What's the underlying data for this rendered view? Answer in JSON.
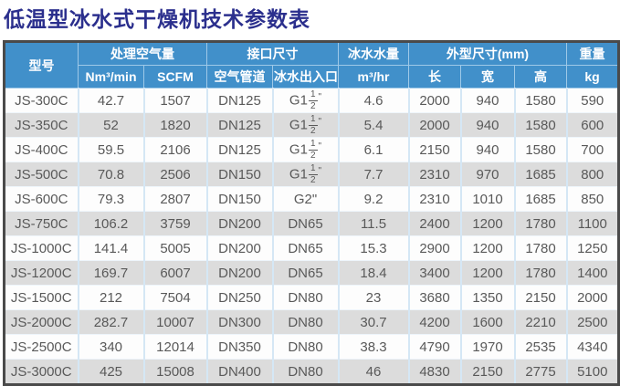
{
  "title": "低温型冰水式干燥机技术参数表",
  "colors": {
    "title_text": "#2b2f8d",
    "header_bg": "#4190ca",
    "header_text": "#ffffff",
    "row_alt_bg": "#dcdcdc",
    "row_bg": "#fdfdfd",
    "body_text": "#595959",
    "outer_border": "#4a4a4a",
    "grid_line": "#d5e7f5"
  },
  "table": {
    "header": {
      "model": "型号",
      "air_capacity": "处理空气量",
      "unit_nm3": "Nm³/min",
      "unit_scfm": "SCFM",
      "connection": "接口尺寸",
      "sub_air_pipe": "空气管道",
      "sub_water_port": "冰水出入口",
      "chilled_water": "冰水水量",
      "unit_m3hr": "m³/hr",
      "dimensions": "外型尺寸(mm)",
      "sub_length": "长",
      "sub_width": "宽",
      "sub_height": "高",
      "weight": "重量",
      "unit_kg": "kg"
    },
    "columns": [
      "model",
      "nm3_min",
      "scfm",
      "air_pipe",
      "water_port",
      "water_flow",
      "length",
      "width",
      "height",
      "weight"
    ],
    "rows": [
      {
        "model": "JS-300C",
        "nm3_min": "42.7",
        "scfm": "1507",
        "air_pipe": "DN125",
        "water_port": "G1-1/2\"",
        "water_flow": "4.6",
        "length": "2000",
        "width": "940",
        "height": "1580",
        "weight": "590"
      },
      {
        "model": "JS-350C",
        "nm3_min": "52",
        "scfm": "1820",
        "air_pipe": "DN125",
        "water_port": "G1-1/2\"",
        "water_flow": "5.4",
        "length": "2000",
        "width": "940",
        "height": "1580",
        "weight": "600"
      },
      {
        "model": "JS-400C",
        "nm3_min": "59.5",
        "scfm": "2106",
        "air_pipe": "DN125",
        "water_port": "G1-1/2\"",
        "water_flow": "6.1",
        "length": "2150",
        "width": "940",
        "height": "1580",
        "weight": "700"
      },
      {
        "model": "JS-500C",
        "nm3_min": "70.8",
        "scfm": "2506",
        "air_pipe": "DN150",
        "water_port": "G1-1/2\"",
        "water_flow": "7.7",
        "length": "2310",
        "width": "970",
        "height": "1685",
        "weight": "800"
      },
      {
        "model": "JS-600C",
        "nm3_min": "79.3",
        "scfm": "2807",
        "air_pipe": "DN150",
        "water_port": "G2\"",
        "water_flow": "9.2",
        "length": "2310",
        "width": "1010",
        "height": "1685",
        "weight": "850"
      },
      {
        "model": "JS-750C",
        "nm3_min": "106.2",
        "scfm": "3759",
        "air_pipe": "DN200",
        "water_port": "DN65",
        "water_flow": "11.5",
        "length": "2400",
        "width": "1200",
        "height": "1780",
        "weight": "1100"
      },
      {
        "model": "JS-1000C",
        "nm3_min": "141.4",
        "scfm": "5005",
        "air_pipe": "DN200",
        "water_port": "DN65",
        "water_flow": "15.3",
        "length": "2900",
        "width": "1200",
        "height": "1780",
        "weight": "1250"
      },
      {
        "model": "JS-1200C",
        "nm3_min": "169.7",
        "scfm": "6007",
        "air_pipe": "DN200",
        "water_port": "DN65",
        "water_flow": "18.4",
        "length": "3400",
        "width": "1200",
        "height": "1780",
        "weight": "1400"
      },
      {
        "model": "JS-1500C",
        "nm3_min": "212",
        "scfm": "7504",
        "air_pipe": "DN250",
        "water_port": "DN80",
        "water_flow": "23",
        "length": "3680",
        "width": "1350",
        "height": "2150",
        "weight": "2000"
      },
      {
        "model": "JS-2000C",
        "nm3_min": "282.7",
        "scfm": "10007",
        "air_pipe": "DN300",
        "water_port": "DN80",
        "water_flow": "30.7",
        "length": "4200",
        "width": "1600",
        "height": "2210",
        "weight": "2500"
      },
      {
        "model": "JS-2500C",
        "nm3_min": "340",
        "scfm": "12014",
        "air_pipe": "DN350",
        "water_port": "DN80",
        "water_flow": "38.3",
        "length": "4790",
        "width": "1970",
        "height": "2535",
        "weight": "4340"
      },
      {
        "model": "JS-3000C",
        "nm3_min": "425",
        "scfm": "15008",
        "air_pipe": "DN400",
        "water_port": "DN80",
        "water_flow": "46",
        "length": "4830",
        "width": "2150",
        "height": "2775",
        "weight": "5100"
      }
    ]
  }
}
